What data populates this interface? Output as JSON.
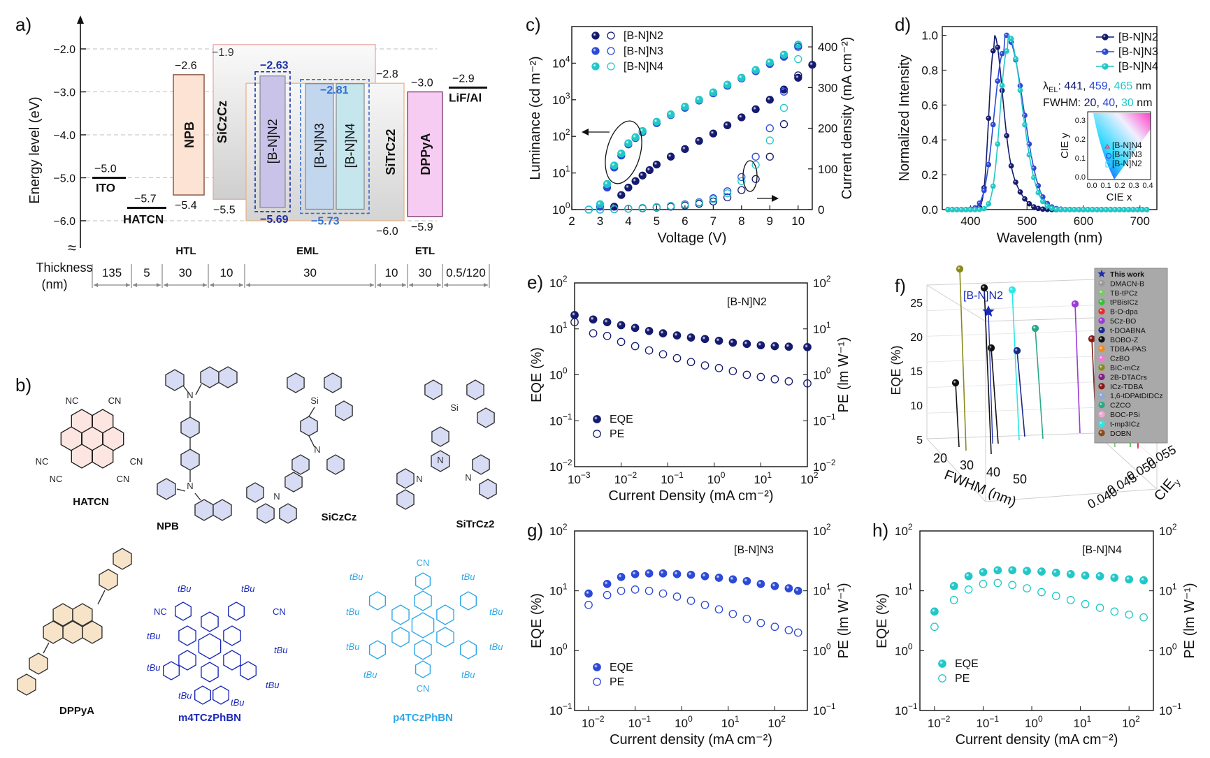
{
  "panels": {
    "a": {
      "letter": "a)",
      "ylabel": "Energy level (eV)",
      "yticks": [
        "−2.0",
        "−3.0",
        "−4.0",
        "−5.0",
        "−6.0"
      ],
      "axis_break": "≈",
      "layers": [
        {
          "name": "ITO",
          "lumo": null,
          "homo": -5.0,
          "label_val": "−5.0",
          "bar_color": "#111111"
        },
        {
          "name": "HATCN",
          "lumo": null,
          "homo": -5.7,
          "label_val": "−5.7",
          "bar_color": "#111111"
        },
        {
          "name": "NPB",
          "lumo": -2.6,
          "homo": -5.4,
          "lumo_text": "−2.6",
          "homo_text": "−5.4",
          "fill": "#fde3d3",
          "stroke": "#8a5a44"
        },
        {
          "name": "SiCzCz",
          "lumo": -1.9,
          "homo": -5.5,
          "lumo_text": "−1.9",
          "homo_text": "−5.5",
          "fill": "#eeeeee",
          "stroke": "#e8a0a0"
        },
        {
          "name": "[B-N]N2",
          "lumo": -2.63,
          "homo": -5.69,
          "lumo_text": "−2.63",
          "homo_text": "−5.69",
          "fill": "#c9c3ea",
          "stroke": "#1a2ea8"
        },
        {
          "name": "[B-N]N3",
          "lumo": -2.81,
          "homo": -5.73,
          "lumo_text": "−2.81",
          "homo_text": "−5.73",
          "fill": "#c2d6ee",
          "stroke": "#2f6fd8"
        },
        {
          "name": "[B-N]N4",
          "fill": "#c6e6ee",
          "stroke": "#2f6fd8"
        },
        {
          "name": "SiTrCz2",
          "lumo": -2.8,
          "homo": -6.0,
          "lumo_text": "−2.8",
          "homo_text": "−6.0",
          "fill": "#eeeeee",
          "stroke": "#e8b080"
        },
        {
          "name": "DPPyA",
          "lumo": -3.0,
          "homo": -5.9,
          "lumo_text": "−3.0",
          "homo_text": "−5.9",
          "fill": "#f6ccf2",
          "stroke": "#8a4a80"
        },
        {
          "name": "LiF/Al",
          "lumo": -2.9,
          "lumo_text": "−2.9",
          "bar_color": "#111111"
        }
      ],
      "region_labels": [
        "HTL",
        "EML",
        "ETL"
      ],
      "thickness_label": "Thickness\n(nm)",
      "thickness_title": "Thickness",
      "thickness_unit": "(nm)",
      "thicknesses": [
        "135",
        "5",
        "30",
        "10",
        "30",
        "10",
        "30",
        "0.5/120"
      ]
    },
    "b": {
      "letter": "b)",
      "molecules": [
        {
          "name": "HATCN",
          "color": "#111111"
        },
        {
          "name": "NPB",
          "color": "#111111"
        },
        {
          "name": "SiCzCz",
          "color": "#111111"
        },
        {
          "name": "SiTrCz2",
          "color": "#111111"
        },
        {
          "name": "DPPyA",
          "color": "#111111"
        },
        {
          "name": "m4TCzPhBN",
          "color": "#1a2ab8"
        },
        {
          "name": "p4TCzPhBN",
          "color": "#2fa8e8"
        }
      ],
      "atom_labels": [
        "NC",
        "CN",
        "N",
        "Si",
        "tBu"
      ]
    }
  },
  "chart_data": [
    {
      "panel": "c)",
      "type": "scatter",
      "xlabel": "Voltage (V)",
      "ylabel_left": "Luminance (cd m⁻²)",
      "ylabel_right": "Current density (mA cm⁻²)",
      "x_ticks": [
        "2",
        "3",
        "4",
        "5",
        "6",
        "7",
        "8",
        "9",
        "10"
      ],
      "xlim": [
        2,
        10.5
      ],
      "ylim_left_log": [
        0,
        5
      ],
      "ylim_right": [
        0,
        450
      ],
      "right_ticks": [
        "0",
        "100",
        "200",
        "300",
        "400"
      ],
      "legend": [
        "[B-N]N2",
        "[B-N]N3",
        "[B-N]N4"
      ],
      "colors": [
        "#141a6e",
        "#2c49d8",
        "#22c7c7"
      ],
      "series": [
        {
          "name": "[B-N]N2",
          "axis": "left",
          "x": [
            3.5,
            3.75,
            4.0,
            4.25,
            4.5,
            4.75,
            5.0,
            5.5,
            6.0,
            6.5,
            7.0,
            7.5,
            8.0,
            8.5,
            9.0,
            9.5,
            10.0,
            10.5
          ],
          "y": [
            1.2,
            2.5,
            4.0,
            6.0,
            8.5,
            12,
            17,
            28,
            45,
            75,
            120,
            200,
            330,
            550,
            1000,
            1900,
            4000,
            9000
          ]
        },
        {
          "name": "[B-N]N3",
          "axis": "left",
          "x": [
            3.0,
            3.25,
            3.5,
            3.75,
            4.0,
            4.25,
            4.5,
            5.0,
            5.5,
            6.0,
            6.5,
            7.0,
            7.5,
            8.0,
            8.5,
            9.0,
            9.5,
            10.0
          ],
          "y": [
            1.2,
            4,
            14,
            30,
            60,
            90,
            130,
            230,
            380,
            600,
            950,
            1500,
            2400,
            3800,
            6000,
            9500,
            15000,
            30000
          ]
        },
        {
          "name": "[B-N]N4",
          "axis": "left",
          "x": [
            3.0,
            3.25,
            3.5,
            3.75,
            4.0,
            4.25,
            4.5,
            5.0,
            5.5,
            6.0,
            6.5,
            7.0,
            7.5,
            8.0,
            8.5,
            9.0,
            9.5,
            10.0
          ],
          "y": [
            1.4,
            5,
            16,
            34,
            65,
            95,
            140,
            250,
            400,
            650,
            1000,
            1600,
            2600,
            4000,
            6500,
            10500,
            17000,
            32000
          ]
        },
        {
          "name": "[B-N]N2 J",
          "axis": "right",
          "x": [
            2.6,
            3.0,
            3.5,
            4.0,
            4.5,
            5.0,
            5.5,
            6.0,
            6.5,
            7.0,
            7.5,
            8.0,
            8.5,
            9.0,
            9.5,
            10.0
          ],
          "y": [
            0,
            0,
            1,
            2,
            3,
            5,
            7,
            10,
            14,
            20,
            30,
            48,
            75,
            130,
            210,
            330
          ]
        },
        {
          "name": "[B-N]N3 J",
          "axis": "right",
          "x": [
            2.6,
            3.0,
            3.5,
            4.0,
            4.5,
            5.0,
            5.5,
            6.0,
            6.5,
            7.0,
            7.5,
            8.0,
            8.5,
            9.0,
            9.5,
            10.0
          ],
          "y": [
            0,
            0,
            1,
            2,
            4,
            6,
            9,
            13,
            18,
            28,
            45,
            80,
            130,
            200,
            290,
            400
          ]
        },
        {
          "name": "[B-N]N4 J",
          "axis": "right",
          "x": [
            2.6,
            3.0,
            3.5,
            4.0,
            4.5,
            5.0,
            5.5,
            6.0,
            6.5,
            7.0,
            7.5,
            8.0,
            8.5,
            9.0,
            9.5,
            10.0
          ],
          "y": [
            0,
            0,
            1,
            2,
            4,
            6,
            9,
            12,
            17,
            25,
            40,
            70,
            110,
            170,
            250,
            370
          ]
        }
      ]
    },
    {
      "panel": "d)",
      "type": "line",
      "xlabel": "Wavelength (nm)",
      "ylabel": "Normalized Intensity",
      "xlim": [
        350,
        730
      ],
      "ylim": [
        0,
        1.05
      ],
      "x_ticks": [
        "400",
        "500",
        "600",
        "700"
      ],
      "y_ticks": [
        "0.0",
        "0.2",
        "0.4",
        "0.6",
        "0.8",
        "1.0"
      ],
      "legend": [
        "[B-N]N2",
        "[B-N]N3",
        "[B-N]N4"
      ],
      "colors": [
        "#141a6e",
        "#2c49d8",
        "#22c7c7"
      ],
      "annotation_lambda": "λ",
      "annotation_lambda_sub": "EL",
      "annotation_values": [
        "441",
        "459",
        "465"
      ],
      "annotation_unit": "nm",
      "annotation_fwhm": "FWHM:",
      "fwhm_values": [
        "20",
        "40",
        "30"
      ],
      "inset": {
        "xlabel": "CIE x",
        "ylabel": "CIE y",
        "x_ticks": [
          "0.0",
          "0.1",
          "0.2",
          "0.3",
          "0.4"
        ],
        "y_ticks": [
          "0.0",
          "0.1",
          "0.2",
          "0.3"
        ],
        "labels": [
          "[B-N]N4",
          "[B-N]N3",
          "[B-N]N2"
        ]
      },
      "series": [
        {
          "name": "[B-N]N2",
          "peak": 441,
          "fwhm": 20
        },
        {
          "name": "[B-N]N3",
          "peak": 459,
          "fwhm": 40
        },
        {
          "name": "[B-N]N4",
          "peak": 465,
          "fwhm": 30
        }
      ]
    },
    {
      "panel": "e)",
      "type": "scatter",
      "title": "[B-N]N2",
      "xlabel": "Current Density (mA cm⁻²)",
      "ylabel_left": "EQE (%)",
      "ylabel_right": "PE (lm W⁻¹)",
      "xlim_log": [
        -3,
        2
      ],
      "ylim_log": [
        -2,
        2
      ],
      "legend": [
        "EQE",
        "PE"
      ],
      "color": "#141a6e",
      "series": [
        {
          "name": "EQE",
          "x_log": [
            -3,
            -2.6,
            -2.3,
            -2.0,
            -1.7,
            -1.4,
            -1.1,
            -0.8,
            -0.5,
            -0.2,
            0.1,
            0.4,
            0.7,
            1.0,
            1.3,
            1.6,
            2.0
          ],
          "y": [
            20,
            16,
            14,
            12,
            10.5,
            9,
            8,
            7.2,
            6.5,
            6,
            5.5,
            5,
            4.7,
            4.4,
            4.2,
            4.1,
            4
          ]
        },
        {
          "name": "PE",
          "x_log": [
            -3,
            -2.6,
            -2.3,
            -2.0,
            -1.7,
            -1.4,
            -1.1,
            -0.8,
            -0.5,
            -0.2,
            0.1,
            0.4,
            0.7,
            1.0,
            1.3,
            1.6,
            2.0
          ],
          "y": [
            14,
            8,
            7,
            5.2,
            4.2,
            3.4,
            2.8,
            2.3,
            1.9,
            1.6,
            1.4,
            1.2,
            1.0,
            0.9,
            0.8,
            0.72,
            0.65
          ]
        }
      ]
    },
    {
      "panel": "f)",
      "type": "scatter",
      "xlabel": "FWHM (nm)",
      "ylabel": "EQE (%)",
      "zlabel": "CIE",
      "zlabel_sub": "y",
      "highlight_label": "[B-N]N2",
      "x_ticks": [
        "20",
        "30",
        "40",
        "50"
      ],
      "y_ticks": [
        "5",
        "10",
        "15",
        "20",
        "25"
      ],
      "z_ticks": [
        "0.040",
        "0.045",
        "0.050",
        "0.055"
      ],
      "legend": [
        {
          "label": "This work",
          "color": "#1a2ab8",
          "marker": "star"
        },
        {
          "label": "DMACN-B",
          "color": "#9a9a9a"
        },
        {
          "label": "TB-tPCz",
          "color": "#7ac86a"
        },
        {
          "label": "tPBisICz",
          "color": "#38c038"
        },
        {
          "label": "B-O-dpa",
          "color": "#e82a2a"
        },
        {
          "label": "5Cz-BO",
          "color": "#9a3ad8"
        },
        {
          "label": "t-DOABNA",
          "color": "#1a2a8a"
        },
        {
          "label": "BOBO-Z",
          "color": "#111111"
        },
        {
          "label": "TDBA-PAS",
          "color": "#f08a20"
        },
        {
          "label": "CzBO",
          "color": "#f07ad8"
        },
        {
          "label": "BIC-mCz",
          "color": "#8a8a1a"
        },
        {
          "label": "2B-DTACrs",
          "color": "#8a1a8a"
        },
        {
          "label": "ICz-TDBA",
          "color": "#8a1a1a"
        },
        {
          "label": "1,6-tDPAtDIDCz",
          "color": "#8aa8d8"
        },
        {
          "label": "CZCO",
          "color": "#2aa88a"
        },
        {
          "label": "BOC-PSi",
          "color": "#f0a8d8"
        },
        {
          "label": "t-mp3ICz",
          "color": "#2ae8e8"
        },
        {
          "label": "DOBN",
          "color": "#8a4a1a"
        }
      ]
    },
    {
      "panel": "g)",
      "type": "scatter",
      "title": "[B-N]N3",
      "xlabel": "Current density (mA cm⁻²)",
      "ylabel_left": "EQE (%)",
      "ylabel_right": "PE (lm W⁻¹)",
      "xlim_log": [
        -2.3,
        2.7
      ],
      "ylim_log": [
        -1,
        2
      ],
      "legend": [
        "EQE",
        "PE"
      ],
      "color": "#2c49d8",
      "series": [
        {
          "name": "EQE",
          "x_log": [
            -2.0,
            -1.6,
            -1.3,
            -1.0,
            -0.7,
            -0.4,
            -0.1,
            0.2,
            0.5,
            0.8,
            1.1,
            1.4,
            1.7,
            2.0,
            2.3,
            2.5
          ],
          "y": [
            9,
            13,
            17,
            19,
            19.5,
            19.5,
            19,
            18.5,
            17.5,
            16.5,
            15.5,
            14.5,
            13,
            12,
            11,
            10
          ]
        },
        {
          "name": "PE",
          "x_log": [
            -2.0,
            -1.6,
            -1.3,
            -1.0,
            -0.7,
            -0.4,
            -0.1,
            0.2,
            0.5,
            0.8,
            1.1,
            1.4,
            1.7,
            2.0,
            2.3,
            2.5
          ],
          "y": [
            5.8,
            8.5,
            10,
            10.5,
            10,
            9,
            8,
            6.8,
            5.8,
            4.9,
            4.1,
            3.4,
            2.9,
            2.5,
            2.2,
            2.0
          ]
        }
      ]
    },
    {
      "panel": "h)",
      "type": "scatter",
      "title": "[B-N]N4",
      "xlabel": "Current density (mA cm⁻²)",
      "ylabel_left": "EQE (%)",
      "ylabel_right": "PE (lm W⁻¹)",
      "xlim_log": [
        -2.3,
        2.5
      ],
      "ylim_log": [
        -1,
        2
      ],
      "legend": [
        "EQE",
        "PE"
      ],
      "color": "#22c7c7",
      "series": [
        {
          "name": "EQE",
          "x_log": [
            -2.0,
            -1.6,
            -1.3,
            -1.0,
            -0.7,
            -0.4,
            -0.1,
            0.2,
            0.5,
            0.8,
            1.1,
            1.4,
            1.7,
            2.0,
            2.3
          ],
          "y": [
            4.5,
            12,
            17.5,
            20.5,
            22,
            22,
            21.5,
            21,
            20,
            19,
            18,
            17.5,
            16.5,
            15.5,
            15
          ]
        },
        {
          "name": "PE",
          "x_log": [
            -2.0,
            -1.6,
            -1.3,
            -1.0,
            -0.7,
            -0.4,
            -0.1,
            0.2,
            0.5,
            0.8,
            1.1,
            1.4,
            1.7,
            2.0,
            2.3
          ],
          "y": [
            2.5,
            7,
            10.5,
            13,
            13.5,
            12.5,
            11,
            9.5,
            8.2,
            7.0,
            6.0,
            5.2,
            4.5,
            4.0,
            3.6
          ]
        }
      ]
    }
  ]
}
